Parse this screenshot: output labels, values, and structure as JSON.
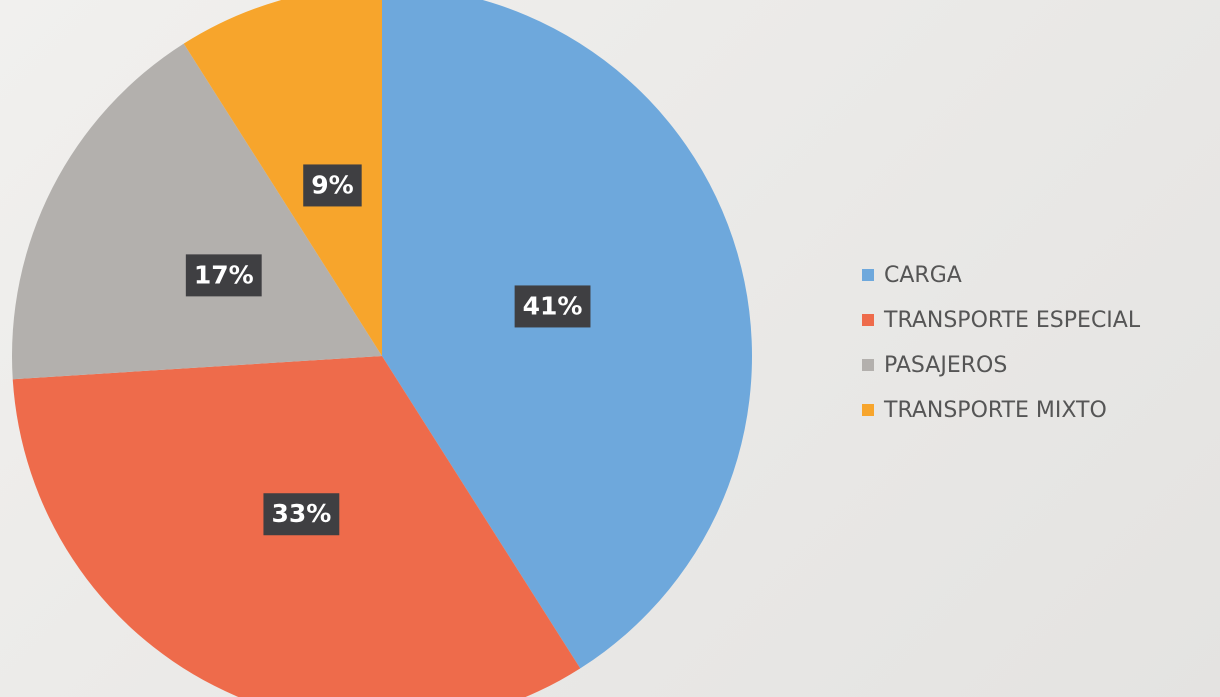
{
  "chart_data": {
    "type": "pie",
    "categories": [
      "CARGA",
      "TRANSPORTE ESPECIAL",
      "PASAJEROS",
      "TRANSPORTE MIXTO"
    ],
    "values": [
      41,
      33,
      17,
      9
    ],
    "value_labels": [
      "41%",
      "33%",
      "17%",
      "9%"
    ],
    "colors": [
      "#6ea8dc",
      "#ee6b4b",
      "#b3b0ad",
      "#f7a52c"
    ],
    "legend": "right"
  }
}
